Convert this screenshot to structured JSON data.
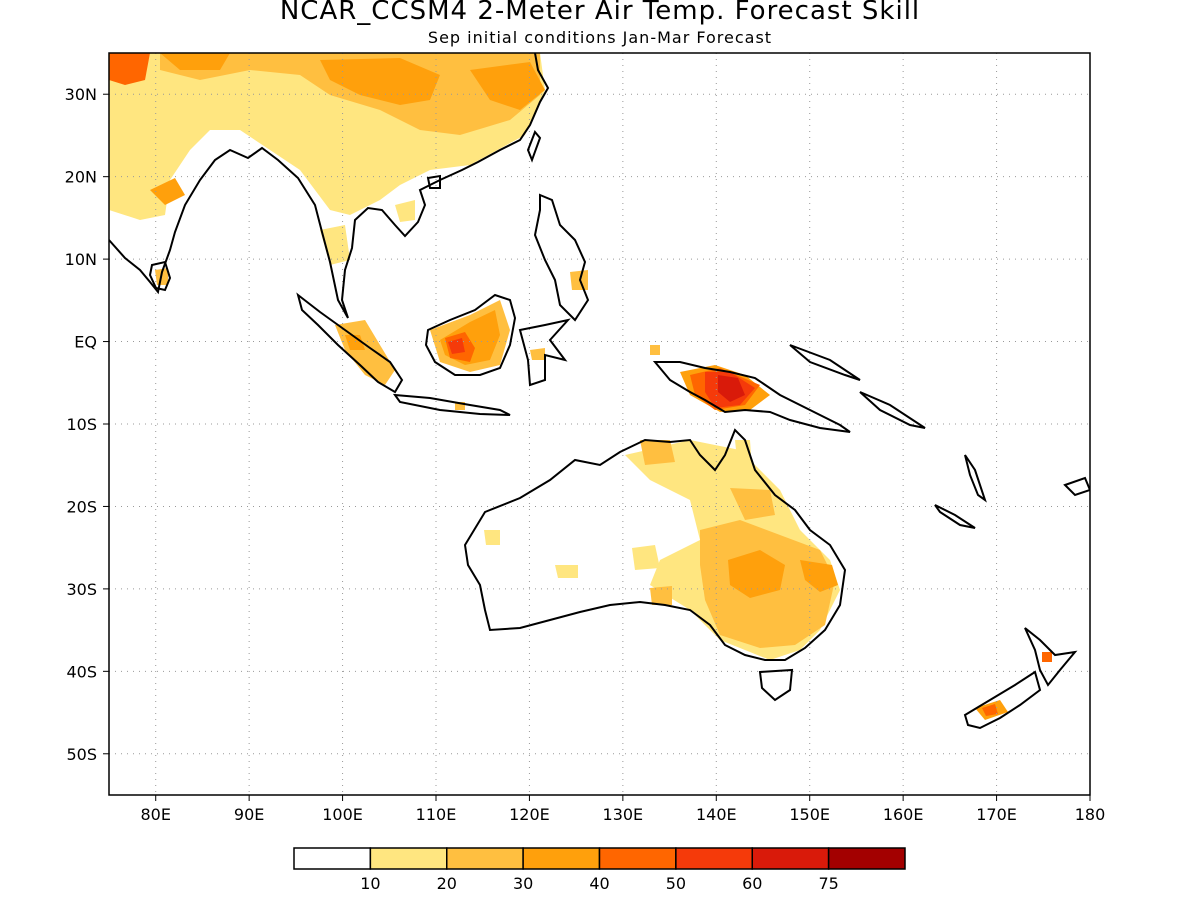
{
  "title": "NCAR_CCSM4 2-Meter Air Temp. Forecast Skill",
  "subtitle": "Sep initial conditions  Jan-Mar Forecast",
  "map": {
    "projection": "latlon",
    "lon_range": [
      75,
      180
    ],
    "lat_range": [
      -55,
      35
    ],
    "lon_ticks": [
      {
        "value": 80,
        "label": "80E"
      },
      {
        "value": 90,
        "label": "90E"
      },
      {
        "value": 100,
        "label": "100E"
      },
      {
        "value": 110,
        "label": "110E"
      },
      {
        "value": 120,
        "label": "120E"
      },
      {
        "value": 130,
        "label": "130E"
      },
      {
        "value": 140,
        "label": "140E"
      },
      {
        "value": 150,
        "label": "150E"
      },
      {
        "value": 160,
        "label": "160E"
      },
      {
        "value": 170,
        "label": "170E"
      },
      {
        "value": 180,
        "label": "180"
      }
    ],
    "lat_ticks": [
      {
        "value": 30,
        "label": "30N"
      },
      {
        "value": 20,
        "label": "20N"
      },
      {
        "value": 10,
        "label": "10N"
      },
      {
        "value": 0,
        "label": "EQ"
      },
      {
        "value": -10,
        "label": "10S"
      },
      {
        "value": -20,
        "label": "20S"
      },
      {
        "value": -30,
        "label": "30S"
      },
      {
        "value": -40,
        "label": "40S"
      },
      {
        "value": -50,
        "label": "50S"
      }
    ],
    "grid": "dotted"
  },
  "colorbar": {
    "bins": [
      {
        "color": "#ffffff"
      },
      {
        "color": "#ffe680"
      },
      {
        "color": "#ffbf40"
      },
      {
        "color": "#ffa00c"
      },
      {
        "color": "#ff6600"
      },
      {
        "color": "#f53a0a"
      },
      {
        "color": "#d91a0a"
      },
      {
        "color": "#a30000"
      }
    ],
    "labels": [
      "10",
      "20",
      "30",
      "40",
      "50",
      "60",
      "75"
    ]
  }
}
